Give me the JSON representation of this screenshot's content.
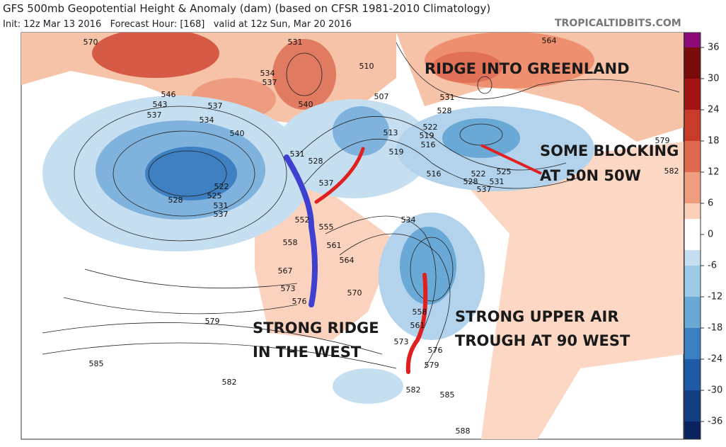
{
  "header": {
    "title": "GFS 500mb Geopotential Height & Anomaly (dam) (based on CFSR 1981-2010 Climatology)",
    "subtitle": "Init: 12z Mar 13 2016   Forecast Hour: [168]   valid at 12z Sun, Mar 20 2016",
    "site": "TROPICALTIDBITS.COM"
  },
  "colorbar": {
    "ticks": [
      36,
      30,
      24,
      18,
      12,
      6,
      0,
      -6,
      -12,
      -18,
      -24,
      -30,
      -36
    ]
  },
  "contour_labels": [
    570,
    531,
    564,
    534,
    537,
    540,
    546,
    543,
    537,
    537,
    534,
    540,
    507,
    510,
    531,
    528,
    522,
    519,
    516,
    513,
    519,
    531,
    528,
    537,
    522,
    525,
    528,
    531,
    537,
    516,
    522,
    525,
    528,
    531,
    537,
    534,
    552,
    555,
    558,
    561,
    564,
    567,
    573,
    576,
    570,
    558,
    561,
    576,
    579,
    573,
    579,
    585,
    582,
    582,
    585,
    588,
    579,
    582
  ],
  "annotations": [
    "RIDGE INTO GREENLAND",
    "SOME BLOCKING",
    "AT 50N 50W",
    "STRONG UPPER AIR",
    "TROUGH AT 90 WEST",
    "STRONG RIDGE",
    "IN THE WEST"
  ]
}
